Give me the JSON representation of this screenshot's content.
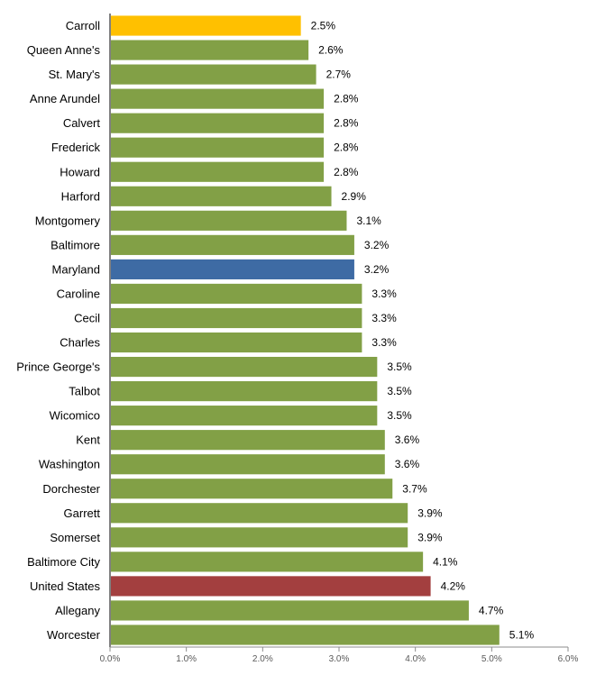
{
  "chart_data": {
    "type": "bar",
    "orientation": "horizontal",
    "categories": [
      "Carroll",
      "Queen Anne's",
      "St. Mary's",
      "Anne Arundel",
      "Calvert",
      "Frederick",
      "Howard",
      "Harford",
      "Montgomery",
      "Baltimore",
      "Maryland",
      "Caroline",
      "Cecil",
      "Charles",
      "Prince George's",
      "Talbot",
      "Wicomico",
      "Kent",
      "Washington",
      "Dorchester",
      "Garrett",
      "Somerset",
      "Baltimore City",
      "United States",
      "Allegany",
      "Worcester"
    ],
    "values": [
      2.5,
      2.6,
      2.7,
      2.8,
      2.8,
      2.8,
      2.8,
      2.9,
      3.1,
      3.2,
      3.2,
      3.3,
      3.3,
      3.3,
      3.5,
      3.5,
      3.5,
      3.6,
      3.6,
      3.7,
      3.9,
      3.9,
      4.1,
      4.2,
      4.7,
      5.1
    ],
    "data_labels": [
      "2.5%",
      "2.6%",
      "2.7%",
      "2.8%",
      "2.8%",
      "2.8%",
      "2.8%",
      "2.9%",
      "3.1%",
      "3.2%",
      "3.2%",
      "3.3%",
      "3.3%",
      "3.3%",
      "3.5%",
      "3.5%",
      "3.5%",
      "3.6%",
      "3.6%",
      "3.7%",
      "3.9%",
      "3.9%",
      "4.1%",
      "4.2%",
      "4.7%",
      "5.1%"
    ],
    "bar_colors": [
      "#FFC000",
      "#82A046",
      "#82A046",
      "#82A046",
      "#82A046",
      "#82A046",
      "#82A046",
      "#82A046",
      "#82A046",
      "#82A046",
      "#3E6BA4",
      "#82A046",
      "#82A046",
      "#82A046",
      "#82A046",
      "#82A046",
      "#82A046",
      "#82A046",
      "#82A046",
      "#82A046",
      "#82A046",
      "#82A046",
      "#82A046",
      "#A33F3F",
      "#82A046",
      "#82A046"
    ],
    "xlim": [
      0,
      6
    ],
    "x_ticks": [
      0,
      1,
      2,
      3,
      4,
      5,
      6
    ],
    "x_tick_labels": [
      "0.0%",
      "1.0%",
      "2.0%",
      "3.0%",
      "4.0%",
      "5.0%",
      "6.0%"
    ],
    "grid": false,
    "legend": "none"
  }
}
